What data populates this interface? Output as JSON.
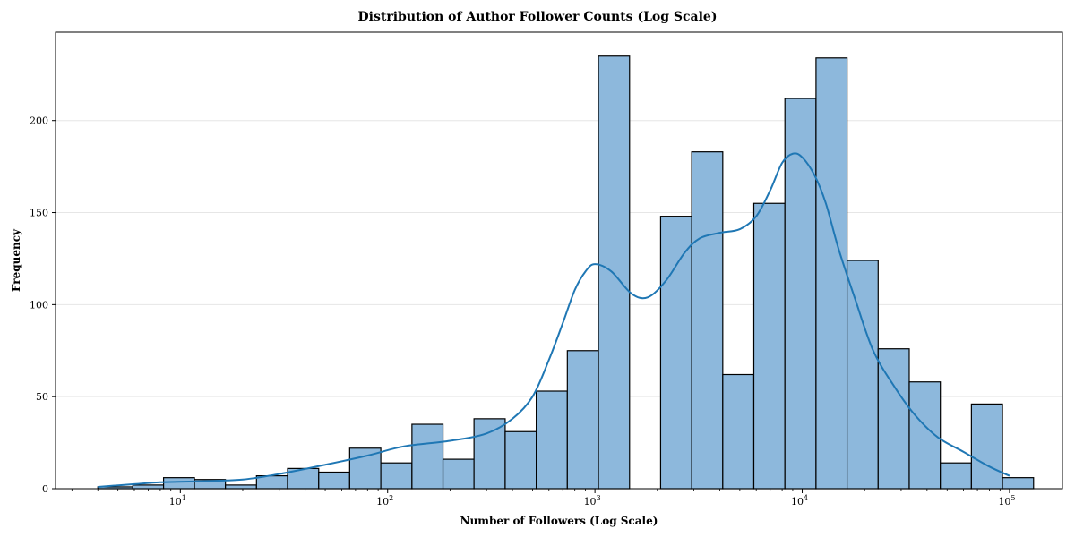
{
  "chart_data": {
    "type": "histogram",
    "title": "Distribution of Author Follower Counts (Log Scale)",
    "xlabel": "Number of Followers (Log Scale)",
    "ylabel": "Frequency",
    "x_scale": "log",
    "xlim": [
      2.5,
      180000
    ],
    "ylim": [
      0,
      248
    ],
    "y_ticks": [
      0,
      50,
      100,
      150,
      200
    ],
    "x_ticks": [
      {
        "value": 10,
        "base": "10",
        "exp": "1"
      },
      {
        "value": 100,
        "base": "10",
        "exp": "2"
      },
      {
        "value": 1000,
        "base": "10",
        "exp": "3"
      },
      {
        "value": 10000,
        "base": "10",
        "exp": "4"
      },
      {
        "value": 100000,
        "base": "10",
        "exp": "5"
      }
    ],
    "grid": "horizontal",
    "bar_color": "#8db8dc",
    "kde_color": "#1f77b4",
    "bins": [
      {
        "x0": 4,
        "x1": 5.9,
        "count": 1
      },
      {
        "x0": 5.9,
        "x1": 8.3,
        "count": 2
      },
      {
        "x0": 8.3,
        "x1": 11.7,
        "count": 6
      },
      {
        "x0": 11.7,
        "x1": 16.5,
        "count": 5
      },
      {
        "x0": 16.5,
        "x1": 23.3,
        "count": 2
      },
      {
        "x0": 23.3,
        "x1": 32.9,
        "count": 7
      },
      {
        "x0": 32.9,
        "x1": 46.5,
        "count": 11
      },
      {
        "x0": 46.5,
        "x1": 65.6,
        "count": 9
      },
      {
        "x0": 65.6,
        "x1": 92.7,
        "count": 22
      },
      {
        "x0": 92.7,
        "x1": 131,
        "count": 14
      },
      {
        "x0": 131,
        "x1": 185,
        "count": 35
      },
      {
        "x0": 185,
        "x1": 261,
        "count": 16
      },
      {
        "x0": 261,
        "x1": 369,
        "count": 38
      },
      {
        "x0": 369,
        "x1": 521,
        "count": 31
      },
      {
        "x0": 521,
        "x1": 736,
        "count": 53
      },
      {
        "x0": 736,
        "x1": 1040,
        "count": 75
      },
      {
        "x0": 1040,
        "x1": 1469,
        "count": 235
      },
      {
        "x0": 1469,
        "x1": 2074,
        "count": 0
      },
      {
        "x0": 2074,
        "x1": 2929,
        "count": 148
      },
      {
        "x0": 2929,
        "x1": 4137,
        "count": 183
      },
      {
        "x0": 4137,
        "x1": 5842,
        "count": 62
      },
      {
        "x0": 5842,
        "x1": 8251,
        "count": 155
      },
      {
        "x0": 8251,
        "x1": 11653,
        "count": 212
      },
      {
        "x0": 11653,
        "x1": 16458,
        "count": 234
      },
      {
        "x0": 16458,
        "x1": 23244,
        "count": 124
      },
      {
        "x0": 23244,
        "x1": 32828,
        "count": 76
      },
      {
        "x0": 32828,
        "x1": 46364,
        "count": 58
      },
      {
        "x0": 46364,
        "x1": 65480,
        "count": 14
      },
      {
        "x0": 65480,
        "x1": 92478,
        "count": 46
      },
      {
        "x0": 92478,
        "x1": 130608,
        "count": 6
      }
    ],
    "kde": {
      "x": [
        4,
        6,
        8,
        12,
        20,
        30,
        50,
        80,
        120,
        200,
        300,
        400,
        500,
        600,
        700,
        800,
        900,
        1000,
        1200,
        1500,
        1800,
        2200,
        2700,
        3200,
        4000,
        5000,
        6000,
        7000,
        8000,
        9000,
        10000,
        11500,
        13000,
        15000,
        18000,
        22000,
        28000,
        35000,
        45000,
        60000,
        80000,
        100000
      ],
      "y": [
        1,
        2.5,
        3.5,
        4,
        5,
        8,
        13,
        18,
        23,
        26,
        30,
        38,
        50,
        70,
        90,
        108,
        118,
        122,
        118,
        106,
        104,
        113,
        128,
        136,
        139,
        141,
        148,
        162,
        177,
        182,
        180,
        170,
        155,
        130,
        103,
        75,
        55,
        40,
        28,
        20,
        12,
        7
      ]
    }
  }
}
